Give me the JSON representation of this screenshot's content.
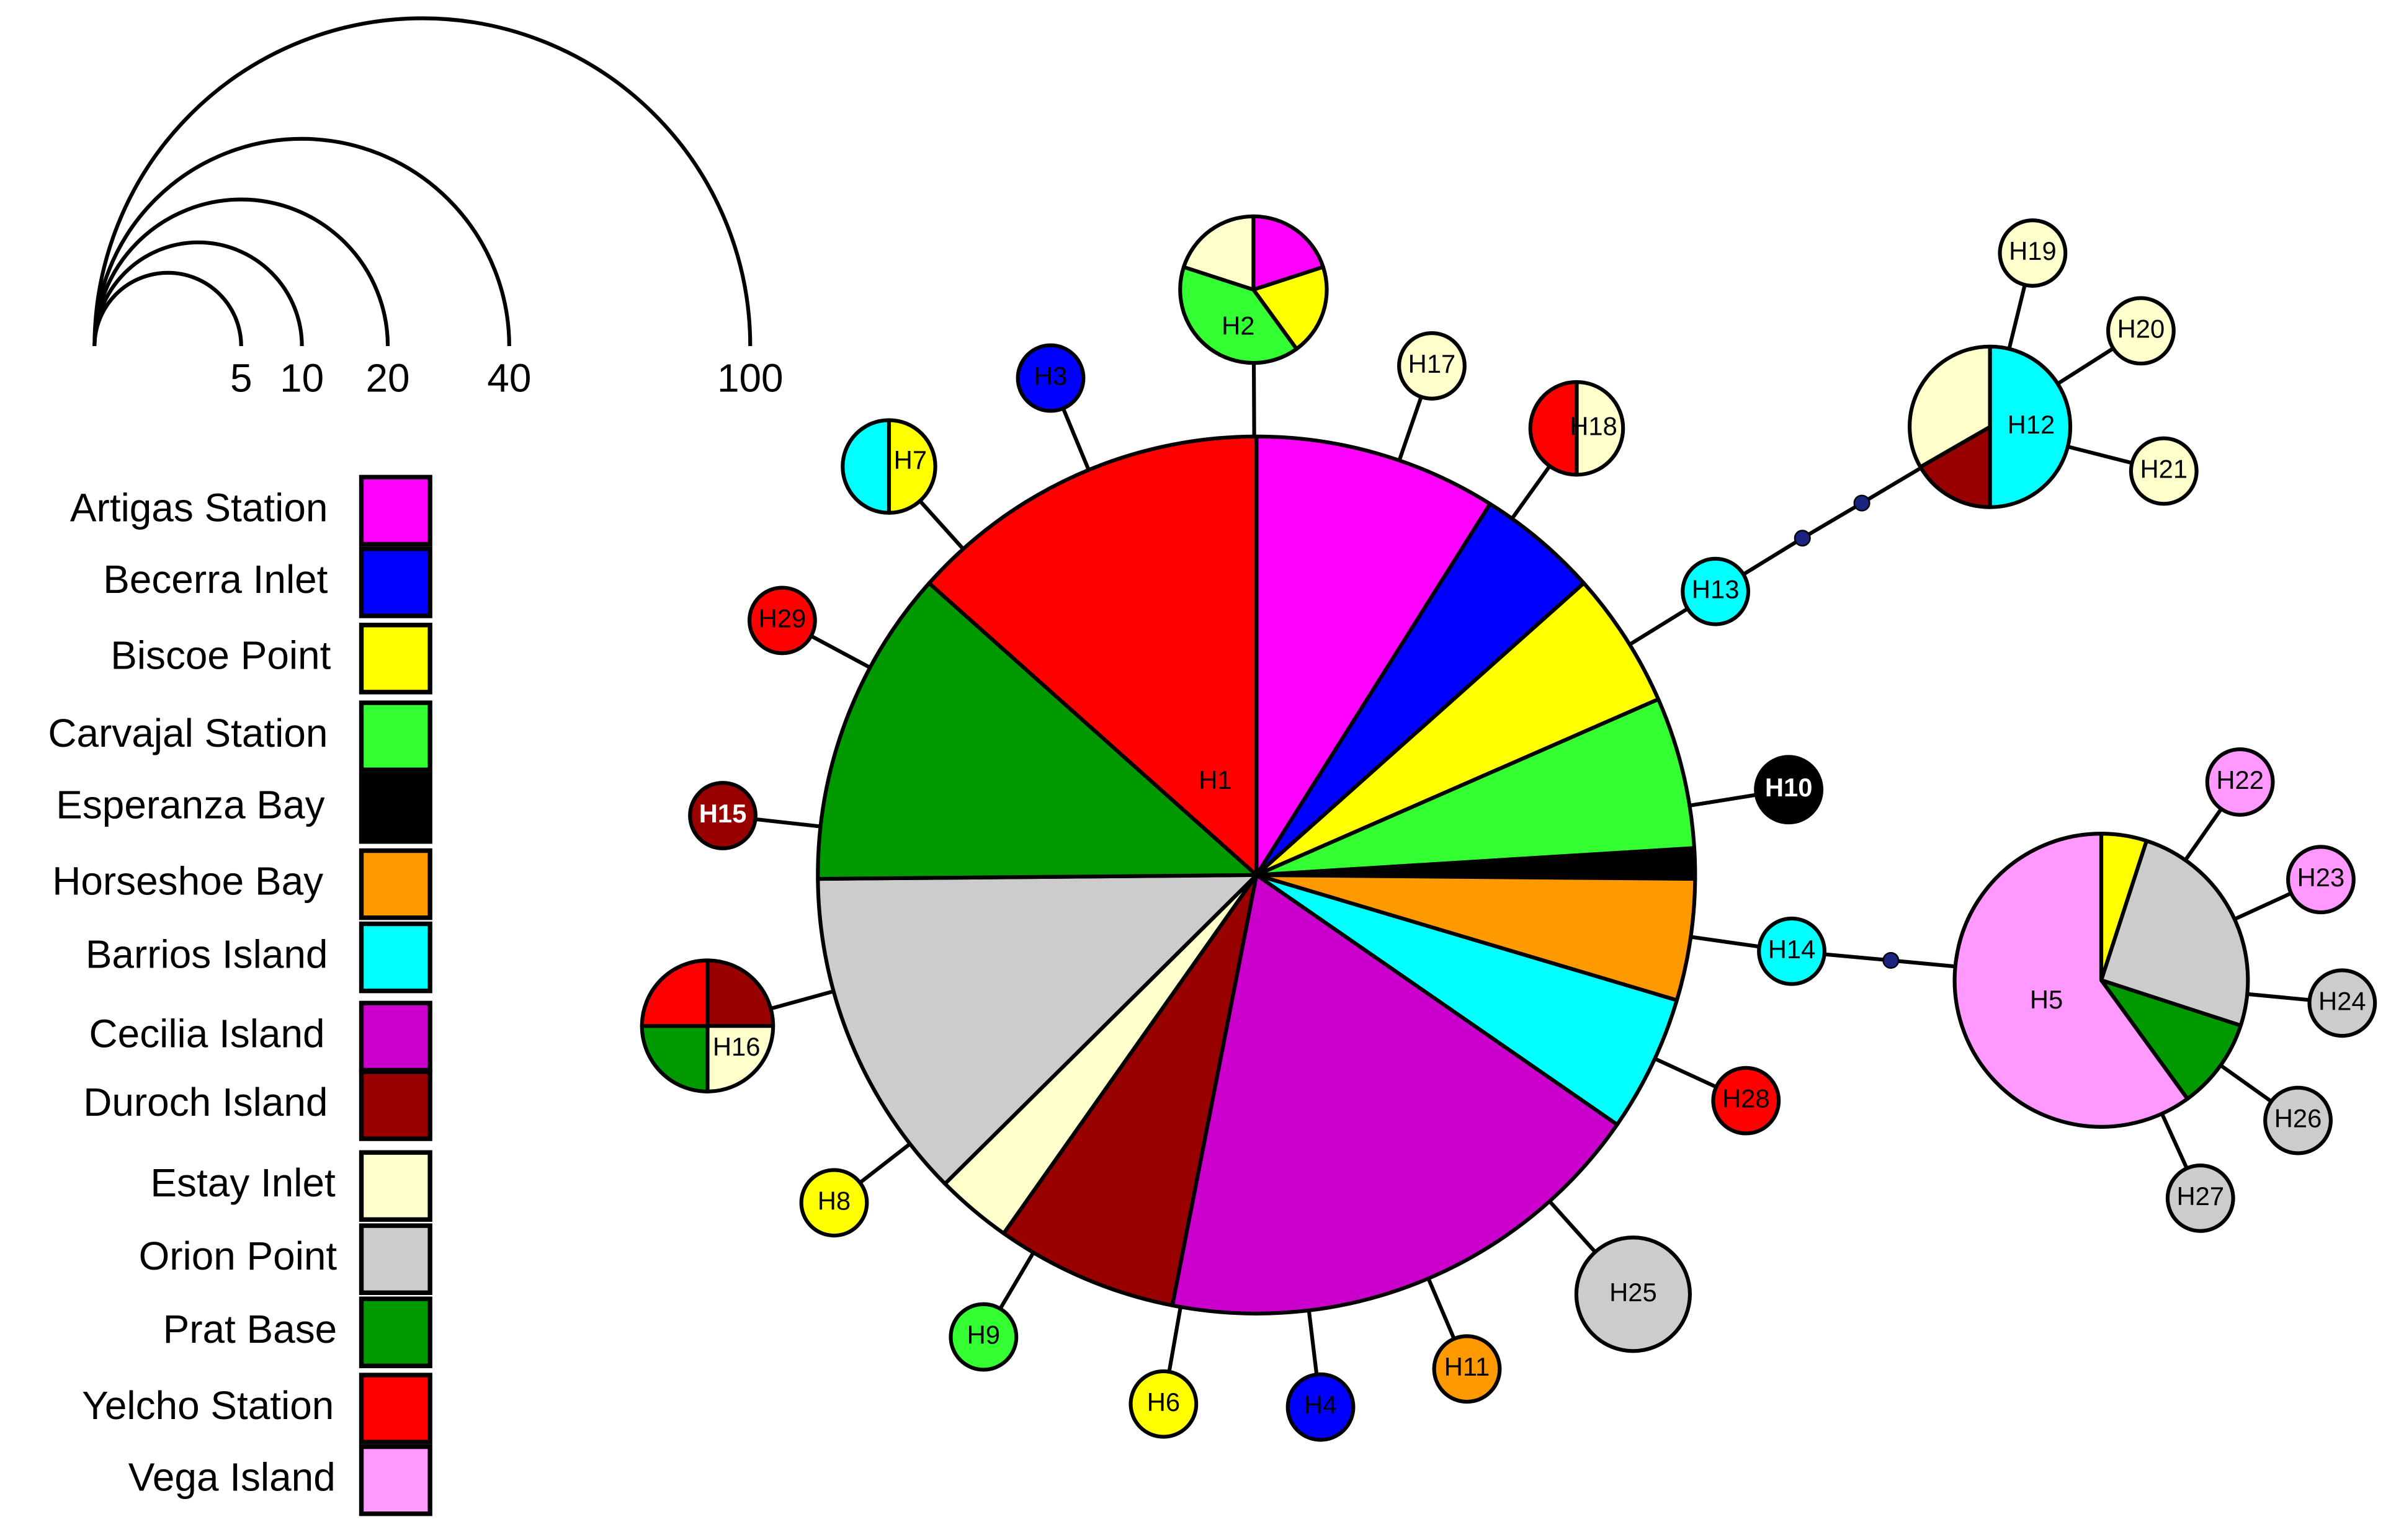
{
  "scale": {
    "values": [
      5,
      10,
      20,
      40,
      100
    ]
  },
  "legend": [
    {
      "name": "Artigas Station",
      "color": "#ff00ff"
    },
    {
      "name": "Becerra Inlet",
      "color": "#0000ff"
    },
    {
      "name": "Biscoe Point",
      "color": "#ffff00"
    },
    {
      "name": "Carvajal Station",
      "color": "#33ff33"
    },
    {
      "name": "Esperanza Bay",
      "color": "#000000"
    },
    {
      "name": "Horseshoe Bay",
      "color": "#ff9900"
    },
    {
      "name": "Barrios Island",
      "color": "#00ffff"
    },
    {
      "name": "Cecilia Island",
      "color": "#cc00cc"
    },
    {
      "name": "Duroch Island",
      "color": "#990000"
    },
    {
      "name": "Estay Inlet",
      "color": "#ffffcc"
    },
    {
      "name": "Orion Point",
      "color": "#cccccc"
    },
    {
      "name": "Prat Base",
      "color": "#009900"
    },
    {
      "name": "Yelcho Station",
      "color": "#ff0000"
    },
    {
      "name": "Vega Island",
      "color": "#ff99ff"
    }
  ],
  "nodes": [
    {
      "label": "H1",
      "segments": [
        {
          "population": "Artigas Station",
          "value": 16
        },
        {
          "population": "Becerra Inlet",
          "value": 8
        },
        {
          "population": "Biscoe Point",
          "value": 9
        },
        {
          "population": "Carvajal Station",
          "value": 10
        },
        {
          "population": "Esperanza Bay",
          "value": 2
        },
        {
          "population": "Horseshoe Bay",
          "value": 8
        },
        {
          "population": "Barrios Island",
          "value": 9
        },
        {
          "population": "Cecilia Island",
          "value": 33
        },
        {
          "population": "Duroch Island",
          "value": 12
        },
        {
          "population": "Estay Inlet",
          "value": 5
        },
        {
          "population": "Orion Point",
          "value": 22
        },
        {
          "population": "Prat Base",
          "value": 21
        },
        {
          "population": "Yelcho Station",
          "value": 24
        }
      ]
    },
    {
      "label": "H2",
      "segments": [
        {
          "population": "Artigas Station",
          "value": 1
        },
        {
          "population": "Biscoe Point",
          "value": 1
        },
        {
          "population": "Carvajal Station",
          "value": 2
        },
        {
          "population": "Estay Inlet",
          "value": 1
        }
      ]
    },
    {
      "label": "H3",
      "segments": [
        {
          "population": "Becerra Inlet",
          "value": 1
        }
      ]
    },
    {
      "label": "H4",
      "segments": [
        {
          "population": "Becerra Inlet",
          "value": 1
        }
      ]
    },
    {
      "label": "H5",
      "segments": [
        {
          "population": "Biscoe Point",
          "value": 1
        },
        {
          "population": "Orion Point",
          "value": 5
        },
        {
          "population": "Prat Base",
          "value": 2
        },
        {
          "population": "Vega Island",
          "value": 12
        }
      ]
    },
    {
      "label": "H6",
      "segments": [
        {
          "population": "Biscoe Point",
          "value": 1
        }
      ]
    },
    {
      "label": "H7",
      "segments": [
        {
          "population": "Biscoe Point",
          "value": 1
        },
        {
          "population": "Barrios Island",
          "value": 1
        }
      ]
    },
    {
      "label": "H8",
      "segments": [
        {
          "population": "Biscoe Point",
          "value": 1
        }
      ]
    },
    {
      "label": "H9",
      "segments": [
        {
          "population": "Carvajal Station",
          "value": 1
        }
      ]
    },
    {
      "label": "H10",
      "segments": [
        {
          "population": "Esperanza Bay",
          "value": 1
        }
      ]
    },
    {
      "label": "H11",
      "segments": [
        {
          "population": "Horseshoe Bay",
          "value": 1
        }
      ]
    },
    {
      "label": "H12",
      "segments": [
        {
          "population": "Barrios Island",
          "value": 3
        },
        {
          "population": "Duroch Island",
          "value": 1
        },
        {
          "population": "Estay Inlet",
          "value": 2
        }
      ]
    },
    {
      "label": "H13",
      "segments": [
        {
          "population": "Barrios Island",
          "value": 1
        }
      ]
    },
    {
      "label": "H14",
      "segments": [
        {
          "population": "Barrios Island",
          "value": 1
        }
      ]
    },
    {
      "label": "H15",
      "segments": [
        {
          "population": "Duroch Island",
          "value": 1
        }
      ]
    },
    {
      "label": "H16",
      "segments": [
        {
          "population": "Duroch Island",
          "value": 1
        },
        {
          "population": "Estay Inlet",
          "value": 1
        },
        {
          "population": "Prat Base",
          "value": 1
        },
        {
          "population": "Yelcho Station",
          "value": 1
        }
      ]
    },
    {
      "label": "H17",
      "segments": [
        {
          "population": "Estay Inlet",
          "value": 1
        }
      ]
    },
    {
      "label": "H18",
      "segments": [
        {
          "population": "Estay Inlet",
          "value": 1
        },
        {
          "population": "Yelcho Station",
          "value": 1
        }
      ]
    },
    {
      "label": "H19",
      "segments": [
        {
          "population": "Estay Inlet",
          "value": 1
        }
      ]
    },
    {
      "label": "H20",
      "segments": [
        {
          "population": "Estay Inlet",
          "value": 1
        }
      ]
    },
    {
      "label": "H21",
      "segments": [
        {
          "population": "Estay Inlet",
          "value": 1
        }
      ]
    },
    {
      "label": "H22",
      "segments": [
        {
          "population": "Vega Island",
          "value": 1
        }
      ]
    },
    {
      "label": "H23",
      "segments": [
        {
          "population": "Vega Island",
          "value": 1
        }
      ]
    },
    {
      "label": "H24",
      "segments": [
        {
          "population": "Orion Point",
          "value": 1
        }
      ]
    },
    {
      "label": "H25",
      "segments": [
        {
          "population": "Orion Point",
          "value": 3
        }
      ]
    },
    {
      "label": "H26",
      "segments": [
        {
          "population": "Orion Point",
          "value": 1
        }
      ]
    },
    {
      "label": "H27",
      "segments": [
        {
          "population": "Orion Point",
          "value": 1
        }
      ]
    },
    {
      "label": "H28",
      "segments": [
        {
          "population": "Yelcho Station",
          "value": 1
        }
      ]
    },
    {
      "label": "H29",
      "segments": [
        {
          "population": "Yelcho Station",
          "value": 1
        }
      ]
    }
  ]
}
